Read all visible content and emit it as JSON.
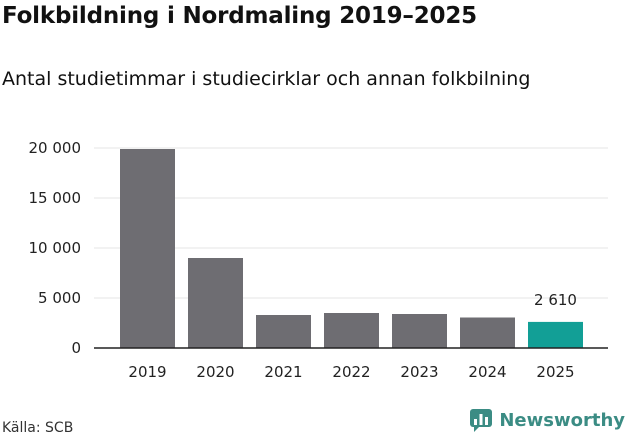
{
  "header": {
    "title": "Folkbildning i Nordmaling 2019–2025",
    "subtitle": "Antal studietimmar i studiecirklar och annan folkbilning"
  },
  "footer": {
    "source": "Källa: SCB",
    "brand": "Newsworthy",
    "brand_icon": "newsworthy-logo-icon"
  },
  "colors": {
    "bar": "#6e6d72",
    "highlight": "#129f96",
    "grid": "#e4e4e4",
    "axis": "#222222",
    "brand": "#3b8c84"
  },
  "chart_data": {
    "type": "bar",
    "title": "Folkbildning i Nordmaling 2019–2025",
    "subtitle": "Antal studietimmar i studiecirklar och annan folkbilning",
    "xlabel": "",
    "ylabel": "",
    "categories": [
      "2019",
      "2020",
      "2021",
      "2022",
      "2023",
      "2024",
      "2025"
    ],
    "values": [
      19900,
      9000,
      3300,
      3500,
      3400,
      3050,
      2610
    ],
    "highlight_index": 6,
    "data_labels": [
      {
        "index": 6,
        "text": "2 610"
      }
    ],
    "ylim": [
      0,
      20000
    ],
    "yticks": [
      0,
      5000,
      10000,
      15000,
      20000
    ],
    "ytick_labels": [
      "0",
      "5 000",
      "10 000",
      "15 000",
      "20 000"
    ],
    "grid": true,
    "legend": "none"
  }
}
